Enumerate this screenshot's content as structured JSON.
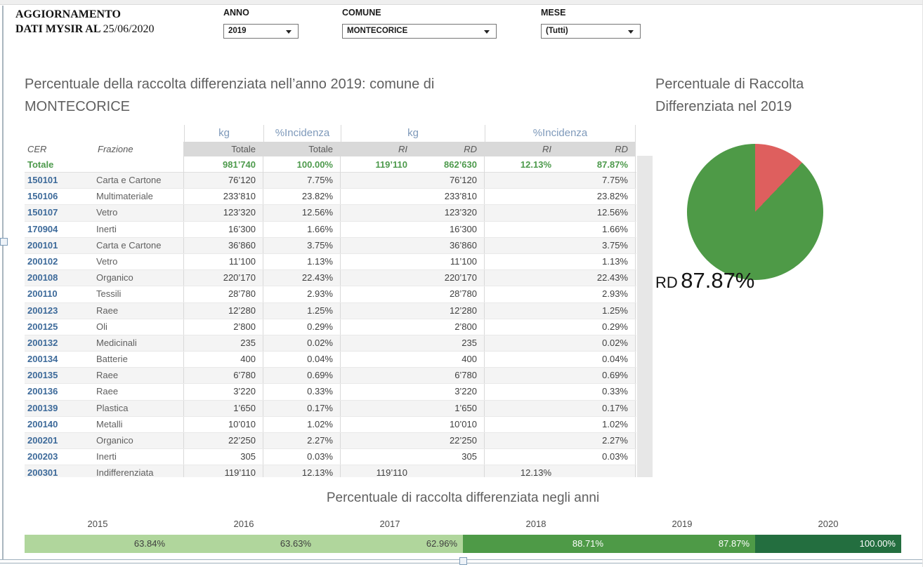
{
  "header": {
    "update_line1": "AGGIORNAMENTO",
    "update_line2": "DATI MYSIR AL",
    "update_date": "25/06/2020",
    "filters": {
      "anno": {
        "label": "ANNO",
        "value": "2019"
      },
      "comune": {
        "label": "COMUNE",
        "value": "MONTECORICE"
      },
      "mese": {
        "label": "MESE",
        "value": "(Tutti)"
      }
    }
  },
  "main": {
    "title": "Percentuale della raccolta differenziata nell’anno 2019: comune di MONTECORICE"
  },
  "table": {
    "group_headers": {
      "kg_tot": "kg",
      "inc_tot": "%Incidenza",
      "kg_rird": "kg",
      "inc_rird": "%Incidenza"
    },
    "col_headers": {
      "cer": "CER",
      "frazione": "Frazione",
      "totale_kg": "Totale",
      "totale_inc": "Totale",
      "ri_kg": "RI",
      "rd_kg": "RD",
      "ri_inc": "RI",
      "rd_inc": "RD"
    },
    "totale": {
      "label": "Totale",
      "kg_totale": "981’740",
      "inc_totale": "100.00%",
      "kg_ri": "119’110",
      "kg_rd": "862’630",
      "inc_ri": "12.13%",
      "inc_rd": "87.87%"
    },
    "rows": [
      {
        "cer": "150101",
        "frazione": "Carta e Cartone",
        "kg_totale": "76’120",
        "inc_totale": "7.75%",
        "kg_ri": "",
        "kg_rd": "76’120",
        "inc_ri": "",
        "inc_rd": "7.75%"
      },
      {
        "cer": "150106",
        "frazione": "Multimateriale",
        "kg_totale": "233’810",
        "inc_totale": "23.82%",
        "kg_ri": "",
        "kg_rd": "233’810",
        "inc_ri": "",
        "inc_rd": "23.82%"
      },
      {
        "cer": "150107",
        "frazione": "Vetro",
        "kg_totale": "123’320",
        "inc_totale": "12.56%",
        "kg_ri": "",
        "kg_rd": "123’320",
        "inc_ri": "",
        "inc_rd": "12.56%"
      },
      {
        "cer": "170904",
        "frazione": "Inerti",
        "kg_totale": "16’300",
        "inc_totale": "1.66%",
        "kg_ri": "",
        "kg_rd": "16’300",
        "inc_ri": "",
        "inc_rd": "1.66%"
      },
      {
        "cer": "200101",
        "frazione": "Carta e Cartone",
        "kg_totale": "36’860",
        "inc_totale": "3.75%",
        "kg_ri": "",
        "kg_rd": "36’860",
        "inc_ri": "",
        "inc_rd": "3.75%"
      },
      {
        "cer": "200102",
        "frazione": "Vetro",
        "kg_totale": "11’100",
        "inc_totale": "1.13%",
        "kg_ri": "",
        "kg_rd": "11’100",
        "inc_ri": "",
        "inc_rd": "1.13%"
      },
      {
        "cer": "200108",
        "frazione": "Organico",
        "kg_totale": "220’170",
        "inc_totale": "22.43%",
        "kg_ri": "",
        "kg_rd": "220’170",
        "inc_ri": "",
        "inc_rd": "22.43%"
      },
      {
        "cer": "200110",
        "frazione": "Tessili",
        "kg_totale": "28’780",
        "inc_totale": "2.93%",
        "kg_ri": "",
        "kg_rd": "28’780",
        "inc_ri": "",
        "inc_rd": "2.93%"
      },
      {
        "cer": "200123",
        "frazione": "Raee",
        "kg_totale": "12’280",
        "inc_totale": "1.25%",
        "kg_ri": "",
        "kg_rd": "12’280",
        "inc_ri": "",
        "inc_rd": "1.25%"
      },
      {
        "cer": "200125",
        "frazione": "Oli",
        "kg_totale": "2’800",
        "inc_totale": "0.29%",
        "kg_ri": "",
        "kg_rd": "2’800",
        "inc_ri": "",
        "inc_rd": "0.29%"
      },
      {
        "cer": "200132",
        "frazione": "Medicinali",
        "kg_totale": "235",
        "inc_totale": "0.02%",
        "kg_ri": "",
        "kg_rd": "235",
        "inc_ri": "",
        "inc_rd": "0.02%"
      },
      {
        "cer": "200134",
        "frazione": "Batterie",
        "kg_totale": "400",
        "inc_totale": "0.04%",
        "kg_ri": "",
        "kg_rd": "400",
        "inc_ri": "",
        "inc_rd": "0.04%"
      },
      {
        "cer": "200135",
        "frazione": "Raee",
        "kg_totale": "6’780",
        "inc_totale": "0.69%",
        "kg_ri": "",
        "kg_rd": "6’780",
        "inc_ri": "",
        "inc_rd": "0.69%"
      },
      {
        "cer": "200136",
        "frazione": "Raee",
        "kg_totale": "3’220",
        "inc_totale": "0.33%",
        "kg_ri": "",
        "kg_rd": "3’220",
        "inc_ri": "",
        "inc_rd": "0.33%"
      },
      {
        "cer": "200139",
        "frazione": "Plastica",
        "kg_totale": "1’650",
        "inc_totale": "0.17%",
        "kg_ri": "",
        "kg_rd": "1’650",
        "inc_ri": "",
        "inc_rd": "0.17%"
      },
      {
        "cer": "200140",
        "frazione": "Metalli",
        "kg_totale": "10’010",
        "inc_totale": "1.02%",
        "kg_ri": "",
        "kg_rd": "10’010",
        "inc_ri": "",
        "inc_rd": "1.02%"
      },
      {
        "cer": "200201",
        "frazione": "Organico",
        "kg_totale": "22’250",
        "inc_totale": "2.27%",
        "kg_ri": "",
        "kg_rd": "22’250",
        "inc_ri": "",
        "inc_rd": "2.27%"
      },
      {
        "cer": "200203",
        "frazione": "Inerti",
        "kg_totale": "305",
        "inc_totale": "0.03%",
        "kg_ri": "",
        "kg_rd": "305",
        "inc_ri": "",
        "inc_rd": "0.03%"
      },
      {
        "cer": "200301",
        "frazione": "Indifferenziata",
        "kg_totale": "119’110",
        "inc_totale": "12.13%",
        "kg_ri": "119’110",
        "kg_rd": "",
        "inc_ri": "12.13%",
        "inc_rd": ""
      }
    ]
  },
  "pie": {
    "title": "Percentuale di Raccolta Differenziata nel 2019",
    "label_prefix": "RD",
    "label_value": "87.87%",
    "rd_percent": 87.87,
    "ri_percent": 12.13,
    "color_rd": "#4e9a47",
    "color_ri": "#de5f5e"
  },
  "yearly": {
    "title": "Percentuale di raccolta differenziata negli anni",
    "segments": [
      {
        "year": "2015",
        "value": "63.84%",
        "color": "#b0d69c",
        "text_color": "#3f3f3f"
      },
      {
        "year": "2016",
        "value": "63.63%",
        "color": "#b0d69c",
        "text_color": "#3f3f3f"
      },
      {
        "year": "2017",
        "value": "62.96%",
        "color": "#b0d69c",
        "text_color": "#3f3f3f"
      },
      {
        "year": "2018",
        "value": "88.71%",
        "color": "#4e9a47",
        "text_color": "#ffffff"
      },
      {
        "year": "2019",
        "value": "87.87%",
        "color": "#4e9a47",
        "text_color": "#ffffff"
      },
      {
        "year": "2020",
        "value": "100.00%",
        "color": "#236e3f",
        "text_color": "#ffffff"
      }
    ]
  },
  "chart_data": [
    {
      "type": "pie",
      "title": "Percentuale di Raccolta Differenziata nel 2019",
      "labels": [
        "RD",
        "RI"
      ],
      "values": [
        87.87,
        12.13
      ],
      "colors": [
        "#4e9a47",
        "#de5f5e"
      ],
      "annotation": "RD 87.87%",
      "start_angle": "12 o'clock, RI slice clockwise first"
    },
    {
      "type": "bar",
      "title": "Percentuale di raccolta differenziata negli anni",
      "categories": [
        "2015",
        "2016",
        "2017",
        "2018",
        "2019",
        "2020"
      ],
      "values": [
        63.84,
        63.63,
        62.96,
        88.71,
        87.87,
        100.0
      ],
      "unit": "%",
      "layout": "single horizontal strip, equal-width year segments, value right-aligned in segment",
      "segment_colors": [
        "#b0d69c",
        "#b0d69c",
        "#b0d69c",
        "#4e9a47",
        "#4e9a47",
        "#236e3f"
      ]
    }
  ]
}
